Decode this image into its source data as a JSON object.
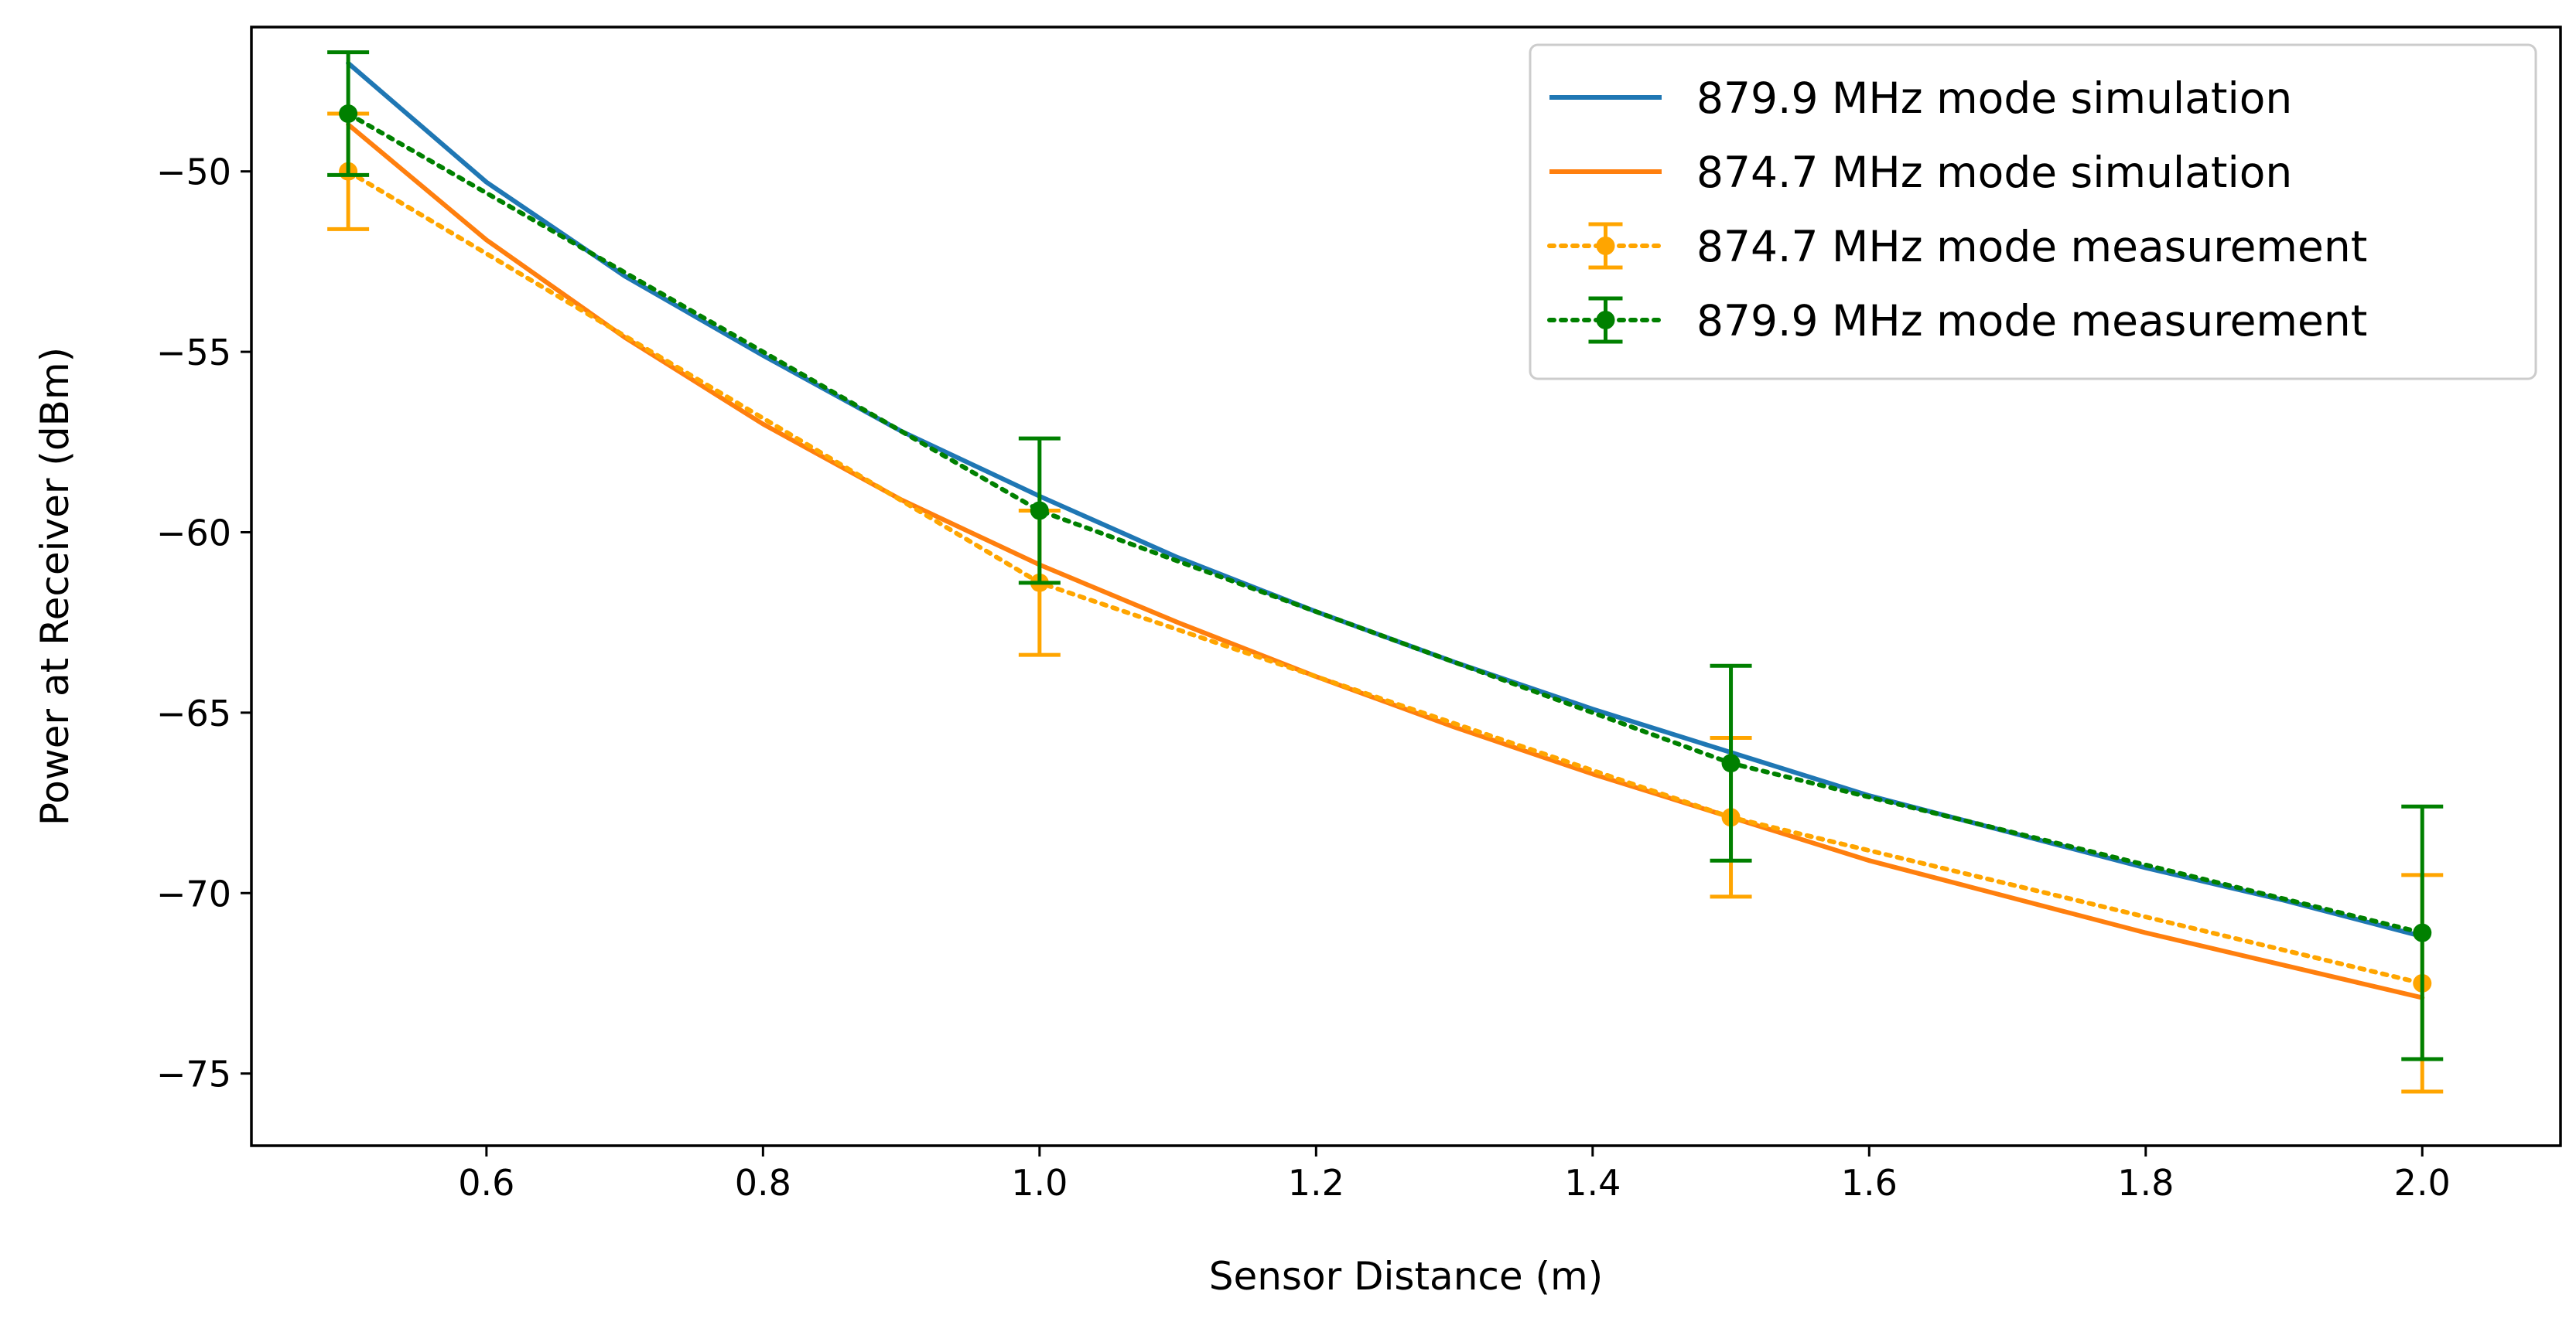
{
  "chart_data": {
    "type": "line",
    "xlabel": "Sensor Distance (m)",
    "ylabel": "Power at Receiver (dBm)",
    "xlim": [
      0.43,
      2.1
    ],
    "ylim": [
      -77,
      -46
    ],
    "xticks": [
      0.6,
      0.8,
      1.0,
      1.2,
      1.4,
      1.6,
      1.8,
      2.0
    ],
    "xtick_labels": [
      "0.6",
      "0.8",
      "1.0",
      "1.2",
      "1.4",
      "1.6",
      "1.8",
      "2.0"
    ],
    "yticks": [
      -50,
      -55,
      -60,
      -65,
      -70,
      -75
    ],
    "ytick_labels": [
      "−50",
      "−55",
      "−60",
      "−65",
      "−70",
      "−75"
    ],
    "grid": false,
    "legend_position": "top-right",
    "series": [
      {
        "name": "879.9 MHz mode simulation",
        "kind": "line",
        "color": "#1f77b4",
        "x": [
          0.5,
          0.6,
          0.7,
          0.8,
          0.9,
          1.0,
          1.1,
          1.2,
          1.3,
          1.4,
          1.5,
          1.6,
          1.7,
          1.8,
          1.9,
          2.0
        ],
        "y": [
          -47.0,
          -50.3,
          -52.9,
          -55.1,
          -57.2,
          -59.0,
          -60.7,
          -62.2,
          -63.6,
          -64.9,
          -66.1,
          -67.3,
          -68.3,
          -69.3,
          -70.2,
          -71.2
        ]
      },
      {
        "name": "874.7 MHz mode simulation",
        "kind": "line",
        "color": "#ff7f0e",
        "x": [
          0.5,
          0.6,
          0.7,
          0.8,
          0.9,
          1.0,
          1.1,
          1.2,
          1.3,
          1.4,
          1.5,
          1.6,
          1.7,
          1.8,
          1.9,
          2.0
        ],
        "y": [
          -48.7,
          -51.9,
          -54.6,
          -57.0,
          -59.1,
          -60.9,
          -62.5,
          -64.0,
          -65.4,
          -66.7,
          -67.9,
          -69.1,
          -70.1,
          -71.1,
          -72.0,
          -72.9
        ]
      },
      {
        "name": "874.7 MHz mode measurement",
        "kind": "errorbar",
        "color": "#ffa500",
        "x": [
          0.5,
          1.0,
          1.5,
          2.0
        ],
        "y": [
          -50.0,
          -61.4,
          -67.9,
          -72.5
        ],
        "err": [
          1.6,
          2.0,
          2.2,
          3.0
        ]
      },
      {
        "name": "879.9 MHz mode measurement",
        "kind": "errorbar",
        "color": "#008000",
        "x": [
          0.5,
          1.0,
          1.5,
          2.0
        ],
        "y": [
          -48.4,
          -59.4,
          -66.4,
          -71.1
        ],
        "err": [
          1.7,
          2.0,
          2.7,
          3.5
        ]
      }
    ]
  }
}
